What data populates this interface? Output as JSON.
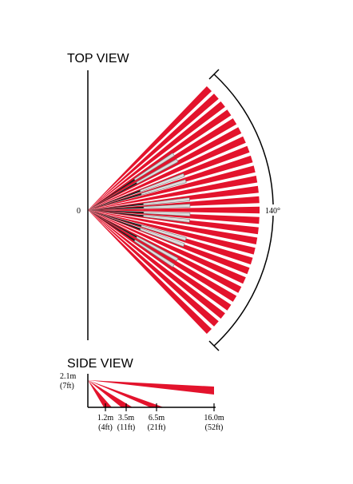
{
  "top_view": {
    "title": "TOP VIEW",
    "origin_label": "0",
    "angle_label": "140°"
  },
  "side_view": {
    "title": "SIDE VIEW",
    "height": {
      "metric": "2.1m",
      "imperial": "(7ft)"
    },
    "distances": [
      {
        "metric": "1.2m",
        "imperial": "(4ft)"
      },
      {
        "metric": "3.5m",
        "imperial": "(11ft)"
      },
      {
        "metric": "6.5m",
        "imperial": "(21ft)"
      },
      {
        "metric": "16.0m",
        "imperial": "(52ft)"
      }
    ]
  }
}
